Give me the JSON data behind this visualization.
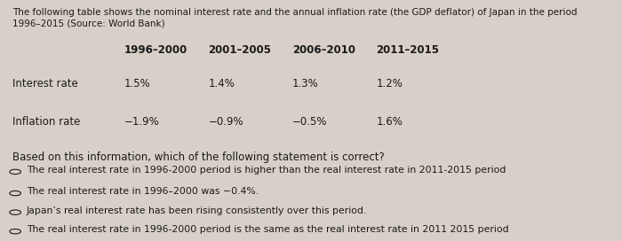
{
  "title": "The following table shows the nominal interest rate and the annual inflation rate (the GDP deflator) of Japan in the period 1996–2015 (Source: World Bank)",
  "col_headers": [
    "1996–2000",
    "2001–2005",
    "2006–2010",
    "2011–2015"
  ],
  "row_labels": [
    "Interest rate",
    "Inflation rate"
  ],
  "interest_values": [
    "1.5%",
    "1.4%",
    "1.3%",
    "1.2%"
  ],
  "inflation_values": [
    "−1.9%",
    "−0.9%",
    "−0.5%",
    "1.6%"
  ],
  "question": "Based on this information, which of the following statement is correct?",
  "options": [
    "The real interest rate in 1996-2000 period is higher than the real interest rate in 2011-2015 period",
    "The real interest rate in 1996–2000 was −0.4%.",
    "Japan’s real interest rate has been rising consistently over this period.",
    "The real interest rate in 1996-2000 period is the same as the real interest rate in 2011 2015 period"
  ],
  "bg_color": "#d8d0c8",
  "text_color": "#1a1a1a",
  "title_fontsize": 7.5,
  "header_fontsize": 8.5,
  "body_fontsize": 8.5,
  "question_fontsize": 8.5,
  "option_fontsize": 7.8
}
